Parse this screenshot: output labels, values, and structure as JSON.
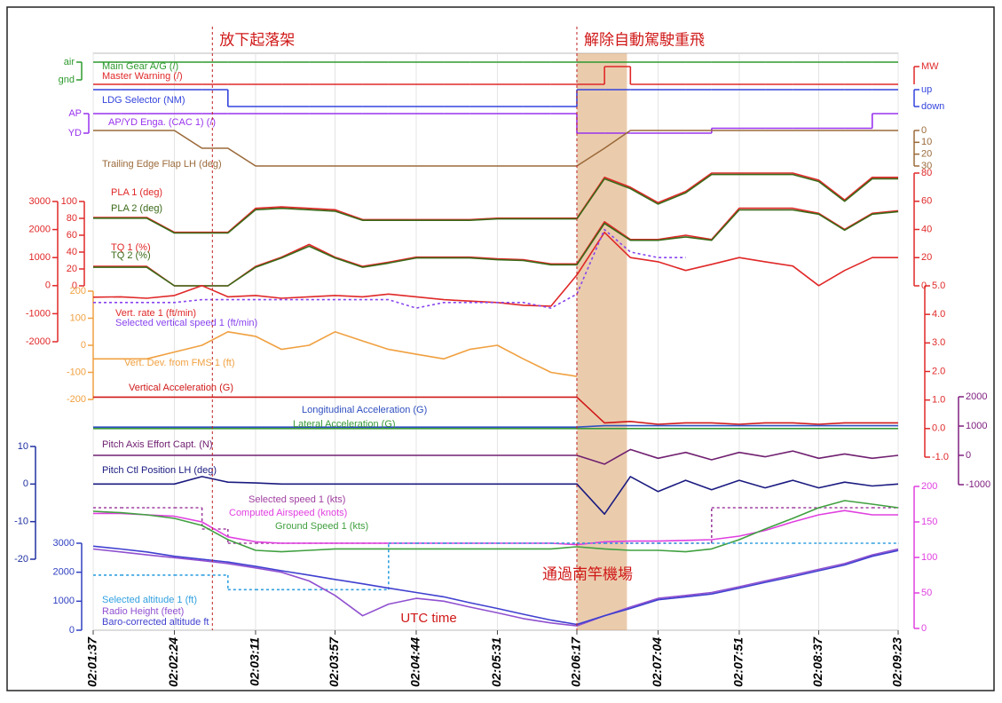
{
  "chart_data": {
    "type": "line",
    "x": [
      "02:01:37",
      "02:01:53",
      "02:02:08",
      "02:02:24",
      "02:02:40",
      "02:02:55",
      "02:03:11",
      "02:03:26",
      "02:03:42",
      "02:03:57",
      "02:04:13",
      "02:04:28",
      "02:04:44",
      "02:05:00",
      "02:05:15",
      "02:05:31",
      "02:05:46",
      "02:06:02",
      "02:06:17",
      "02:06:33",
      "02:06:48",
      "02:07:04",
      "02:07:20",
      "02:07:35",
      "02:07:51",
      "02:08:06",
      "02:08:22",
      "02:08:37",
      "02:08:52",
      "02:09:08",
      "02:09:23"
    ],
    "xlim": [
      "02:01:37",
      "02:09:23"
    ],
    "xticks": [
      "02:01:37",
      "02:02:24",
      "02:03:11",
      "02:03:57",
      "02:04:44",
      "02:05:31",
      "02:06:17",
      "02:07:04",
      "02:07:51",
      "02:08:37",
      "02:09:23"
    ],
    "xlabel": "UTC time",
    "grid": true,
    "shade": [
      "02:06:17",
      "02:06:46"
    ],
    "annotations": [
      {
        "text": "放下起落架",
        "x": "02:02:46",
        "vline": true
      },
      {
        "text": "解除自動駕駛重飛",
        "x": "02:06:17",
        "vline": true
      },
      {
        "text": "通過南竿機場",
        "x": "02:06:17"
      }
    ],
    "axes": [
      {
        "side": "left",
        "color": "#2e9a2e",
        "ylim": [
          0,
          1
        ],
        "yticks": [
          {
            "value": 1,
            "label": "air"
          },
          {
            "value": 0,
            "label": "gnd"
          }
        ]
      },
      {
        "side": "right",
        "color": "#e02828",
        "ylim": [
          0,
          1
        ],
        "yticks": [
          {
            "value": 1,
            "label": "MW"
          }
        ]
      },
      {
        "side": "right",
        "color": "#3344dd",
        "ylim": [
          0,
          1
        ],
        "yticks": [
          {
            "value": 1,
            "label": "up"
          },
          {
            "value": 0,
            "label": "down"
          }
        ]
      },
      {
        "side": "left",
        "color": "#9933ee",
        "ylim": [
          0,
          1
        ],
        "yticks": [
          {
            "value": 1,
            "label": "AP"
          },
          {
            "value": 0,
            "label": "YD"
          }
        ]
      },
      {
        "side": "right",
        "color": "#9b6a3a",
        "ylim": [
          30,
          0
        ],
        "yticks": [
          0,
          10,
          20,
          30
        ]
      },
      {
        "side": "right",
        "color": "#e02828",
        "ylim": [
          0,
          80
        ],
        "yticks": [
          0,
          20,
          40,
          60,
          80
        ]
      },
      {
        "side": "left",
        "color": "#e02828",
        "ylim": [
          -2000,
          3000
        ],
        "yticks": [
          -2000,
          -1000,
          0,
          1000,
          2000,
          3000
        ]
      },
      {
        "side": "left",
        "color": "#e02828",
        "ylim": [
          0,
          100
        ],
        "yticks": [
          0,
          20,
          40,
          60,
          80,
          100
        ]
      },
      {
        "side": "left",
        "color": "#f0a040",
        "ylim": [
          -200,
          200
        ],
        "yticks": [
          -200,
          -100,
          0,
          100,
          200
        ]
      },
      {
        "side": "right",
        "color": "#e02828",
        "ylim": [
          -1,
          5
        ],
        "yticks": [
          {
            "value": -1,
            "label": "-1.0"
          },
          {
            "value": 0,
            "label": "0.0"
          },
          {
            "value": 1,
            "label": "1.0"
          },
          {
            "value": 2,
            "label": "2.0"
          },
          {
            "value": 3,
            "label": "3.0"
          },
          {
            "value": 4,
            "label": "4.0"
          },
          {
            "value": 5,
            "label": "5.0"
          }
        ]
      },
      {
        "side": "right",
        "color": "#802080",
        "ylim": [
          -1000,
          2000
        ],
        "yticks": [
          -1000,
          0,
          1000,
          2000
        ]
      },
      {
        "side": "left",
        "color": "#2030a0",
        "ylim": [
          -20,
          10
        ],
        "yticks": [
          -20,
          -10,
          0,
          10
        ]
      },
      {
        "side": "right",
        "color": "#e040e0",
        "ylim": [
          0,
          200
        ],
        "yticks": [
          0,
          50,
          100,
          150,
          200
        ]
      },
      {
        "side": "left",
        "color": "#3040c0",
        "ylim": [
          0,
          3000
        ],
        "yticks": [
          0,
          1000,
          2000,
          3000
        ]
      }
    ],
    "series": [
      {
        "name": "Main Gear A/G (/)",
        "color": "#2e9a2e",
        "axis": 0,
        "step": true,
        "values": [
          1,
          1,
          1,
          1,
          1,
          1,
          1,
          1,
          1,
          1,
          1,
          1,
          1,
          1,
          1,
          1,
          1,
          1,
          1,
          1,
          1,
          1,
          1,
          1,
          1,
          1,
          1,
          1,
          1,
          1,
          1
        ]
      },
      {
        "name": "Master Warning (/)",
        "color": "#e02828",
        "axis": 1,
        "step": true,
        "values": [
          0,
          0,
          0,
          0,
          0,
          0,
          0,
          0,
          0,
          0,
          0,
          0,
          0,
          0,
          0,
          0,
          0,
          0,
          0,
          1,
          0,
          0,
          0,
          0,
          0,
          0,
          0,
          0,
          0,
          0,
          0
        ]
      },
      {
        "name": "LDG Selector (NM)",
        "color": "#3344dd",
        "axis": 2,
        "step": true,
        "values": [
          1,
          1,
          1,
          1,
          1,
          0,
          0,
          0,
          0,
          0,
          0,
          0,
          0,
          0,
          0,
          0,
          0,
          0,
          1,
          1,
          1,
          1,
          1,
          1,
          1,
          1,
          1,
          1,
          1,
          1,
          1
        ]
      },
      {
        "name": "AP/YD Enga. (CAC 1) (/)",
        "color": "#9933ee",
        "axis": 3,
        "step": true,
        "values": [
          1,
          1,
          1,
          1,
          1,
          1,
          1,
          1,
          1,
          1,
          1,
          1,
          1,
          1,
          1,
          1,
          1,
          1,
          0,
          0,
          0,
          0,
          0,
          0.25,
          0.25,
          0.25,
          0.25,
          0.25,
          0.25,
          1,
          1
        ]
      },
      {
        "name": "Trailing Edge Flap LH (deg)",
        "color": "#9b6a3a",
        "axis": 4,
        "values": [
          0,
          0,
          0,
          0,
          15,
          15,
          30,
          30,
          30,
          30,
          30,
          30,
          30,
          30,
          30,
          30,
          30,
          30,
          30,
          15,
          0,
          0,
          0,
          0,
          0,
          0,
          0,
          0,
          0,
          0,
          0
        ]
      },
      {
        "name": "PLA 1 (deg)",
        "color": "#e02828",
        "axis": 5,
        "values": [
          48.5,
          48.5,
          48.5,
          38,
          38,
          38,
          55,
          56,
          55,
          54,
          47,
          47,
          47,
          47,
          47,
          48,
          48,
          48,
          48,
          77,
          70,
          59,
          67,
          80,
          80,
          80,
          80,
          75,
          61,
          77,
          77
        ]
      },
      {
        "name": "PLA 2 (deg)",
        "color": "#3a6a18",
        "axis": 5,
        "values": [
          48,
          48,
          48,
          37.5,
          37.5,
          37.5,
          54,
          55,
          54,
          53,
          46.5,
          46.5,
          46.5,
          46.5,
          46.5,
          47.5,
          47.5,
          47.5,
          47.5,
          76,
          69,
          58,
          66,
          79,
          79,
          79,
          79,
          74,
          60,
          76,
          76
        ]
      },
      {
        "name": "TQ 1 (%)",
        "color": "#e02828",
        "axis": 7,
        "values": [
          23,
          23,
          23,
          0,
          0,
          0,
          23,
          34,
          49,
          34,
          23,
          28,
          34,
          34,
          34,
          32,
          31,
          26,
          26,
          76,
          55,
          55,
          60,
          55,
          92,
          92,
          92,
          86,
          67,
          86,
          89
        ]
      },
      {
        "name": "TQ 2 (%)",
        "color": "#3a6a18",
        "axis": 7,
        "values": [
          22,
          22,
          22,
          0,
          0,
          0,
          22,
          33,
          47,
          33,
          22,
          27,
          33,
          33,
          33,
          31,
          30,
          25,
          25,
          74,
          54,
          54,
          58,
          54,
          90,
          90,
          90,
          85,
          66,
          85,
          88
        ]
      },
      {
        "name": "Vert. rate 1 (ft/min)",
        "color": "#e02828",
        "axis": 6,
        "values": [
          -410,
          -400,
          -450,
          -350,
          0,
          -400,
          -350,
          -450,
          -400,
          -350,
          -400,
          -300,
          -400,
          -500,
          -550,
          -600,
          -700,
          -730,
          380,
          1900,
          1000,
          850,
          540,
          760,
          1000,
          850,
          700,
          0,
          540,
          1000,
          1000
        ]
      },
      {
        "name": "Selected vertical speed 1 (ft/min)",
        "color": "#8844ee",
        "axis": 6,
        "dash": true,
        "values": [
          -600,
          -600,
          -600,
          -600,
          -500,
          -500,
          -500,
          -500,
          -500,
          -500,
          -500,
          -500,
          -800,
          -600,
          -600,
          -600,
          -600,
          -800,
          -300,
          2000,
          1200,
          1000,
          1000,
          null,
          null,
          null,
          null,
          null,
          null,
          null,
          null
        ]
      },
      {
        "name": "Vert. Dev. from FMS 1 (ft)",
        "color": "#f0a040",
        "axis": 8,
        "values": [
          -50,
          -50,
          -50,
          -25,
          0,
          50,
          33,
          -15,
          0,
          50,
          16,
          -15,
          -33,
          -50,
          -15,
          0,
          -50,
          -100,
          -115,
          null,
          null,
          null,
          null,
          null,
          null,
          null,
          null,
          null,
          null,
          null,
          null
        ]
      },
      {
        "name": "Vertical Acceleration (G)",
        "color": "#d01818",
        "axis": 9,
        "values": [
          1.1,
          1.1,
          1.1,
          1.1,
          1.1,
          1.1,
          1.1,
          1.1,
          1.1,
          1.1,
          1.1,
          1.1,
          1.1,
          1.1,
          1.1,
          1.1,
          1.1,
          1.1,
          1.1,
          0.2,
          0.25,
          0.15,
          0.2,
          0.2,
          0.15,
          0.2,
          0.2,
          0.15,
          0.2,
          0.2,
          0.2
        ]
      },
      {
        "name": "Longitudinal Acceleration (G)",
        "color": "#3050c0",
        "axis": 9,
        "values": [
          0.05,
          0.05,
          0.05,
          0.05,
          0.05,
          0.05,
          0.05,
          0.05,
          0.05,
          0.05,
          0.05,
          0.05,
          0.05,
          0.05,
          0.05,
          0.05,
          0.05,
          0.05,
          0.05,
          0.1,
          0.1,
          0.1,
          0.1,
          0.1,
          0.1,
          0.1,
          0.1,
          0.1,
          0.1,
          0.1,
          0.1
        ]
      },
      {
        "name": "Lateral Acceleration (G)",
        "color": "#3a9a3a",
        "axis": 9,
        "values": [
          0,
          0,
          0,
          0,
          0,
          0,
          0,
          0,
          0,
          0,
          0,
          0,
          0,
          0,
          0,
          0,
          0,
          0,
          0,
          0,
          0,
          0,
          0,
          0,
          0,
          0,
          0,
          0,
          0,
          0,
          0
        ]
      },
      {
        "name": "Pitch Axis Effort Capt. (N)",
        "color": "#702070",
        "axis": 10,
        "values": [
          0,
          0,
          0,
          0,
          0,
          0,
          0,
          0,
          0,
          0,
          0,
          0,
          0,
          0,
          0,
          0,
          0,
          0,
          0,
          -300,
          200,
          -100,
          100,
          -150,
          100,
          -50,
          150,
          -100,
          50,
          -100,
          0
        ]
      },
      {
        "name": "Pitch Ctl Position LH (deg)",
        "color": "#1a1a80",
        "axis": 11,
        "values": [
          0,
          0,
          0,
          0,
          2,
          0.5,
          0.3,
          0,
          0,
          0,
          0,
          0,
          0,
          0,
          0,
          0,
          0,
          0,
          0,
          -8,
          2,
          -2,
          1,
          -1.5,
          1,
          -1,
          1,
          -1,
          0.5,
          -0.5,
          0
        ]
      },
      {
        "name": "Selected speed 1 (kts)",
        "color": "#a040a0",
        "axis": 12,
        "step": true,
        "dash": true,
        "values": [
          170,
          170,
          170,
          170,
          140,
          120,
          120,
          120,
          120,
          120,
          120,
          120,
          120,
          120,
          120,
          120,
          120,
          120,
          120,
          120,
          120,
          120,
          120,
          170,
          170,
          170,
          170,
          170,
          170,
          170,
          170
        ]
      },
      {
        "name": "Computed Airspeed (knots)",
        "color": "#e040e0",
        "axis": 12,
        "values": [
          162,
          162,
          160,
          158,
          150,
          129,
          122,
          120,
          120,
          120,
          120,
          120,
          120,
          120,
          120,
          120,
          120,
          120,
          118,
          122,
          123,
          123,
          124,
          125,
          130,
          138,
          150,
          160,
          166,
          160,
          160
        ]
      },
      {
        "name": "Ground Speed 1 (kts)",
        "color": "#40a040",
        "axis": 12,
        "values": [
          165,
          163,
          160,
          155,
          145,
          125,
          110,
          108,
          110,
          112,
          112,
          112,
          112,
          112,
          112,
          112,
          112,
          112,
          115,
          112,
          110,
          110,
          108,
          112,
          125,
          140,
          155,
          170,
          180,
          175,
          170
        ]
      },
      {
        "name": "Selected altitude 1 (ft)",
        "color": "#30a0e0",
        "axis": 13,
        "step": true,
        "dash": true,
        "values": [
          1900,
          1900,
          1900,
          1900,
          1900,
          1400,
          1400,
          1400,
          1400,
          1400,
          1400,
          3000,
          3000,
          3000,
          3000,
          3000,
          3000,
          3000,
          3000,
          3000,
          3000,
          3000,
          3000,
          3000,
          3000,
          3000,
          3000,
          3000,
          3000,
          3000,
          3000
        ]
      },
      {
        "name": "Radio Height (feet)",
        "color": "#9050d0",
        "axis": 13,
        "values": [
          2800,
          2700,
          2600,
          2500,
          2400,
          2300,
          2150,
          2000,
          1700,
          1200,
          500,
          900,
          1100,
          1000,
          800,
          600,
          400,
          250,
          150,
          500,
          800,
          1100,
          1200,
          1300,
          1500,
          1700,
          1900,
          2100,
          2300,
          2600,
          2800
        ]
      },
      {
        "name": "Baro-corrected altitude ft",
        "color": "#4040d0",
        "axis": 13,
        "values": [
          2900,
          2800,
          2700,
          2550,
          2450,
          2350,
          2200,
          2050,
          1900,
          1750,
          1600,
          1450,
          1300,
          1150,
          950,
          750,
          550,
          350,
          200,
          500,
          750,
          1050,
          1150,
          1250,
          1450,
          1650,
          1850,
          2050,
          2250,
          2550,
          2750
        ]
      }
    ]
  }
}
